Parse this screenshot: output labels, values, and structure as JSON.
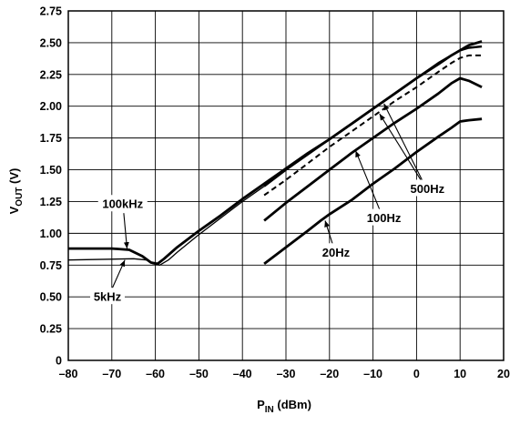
{
  "chart_data": {
    "type": "line",
    "title": "",
    "xlabel": "P",
    "xlabel_sub": "IN",
    "xlabel_unit": " (dBm)",
    "ylabel": "V",
    "ylabel_sub": "OUT",
    "ylabel_unit": " (V)",
    "xlim": [
      -80,
      20
    ],
    "ylim": [
      0,
      2.75
    ],
    "xticks": [
      -80,
      -70,
      -60,
      -50,
      -40,
      -30,
      -20,
      -10,
      0,
      10,
      20
    ],
    "yticks": [
      0,
      0.25,
      0.5,
      0.75,
      1.0,
      1.25,
      1.5,
      1.75,
      2.0,
      2.25,
      2.5,
      2.75
    ],
    "xtick_labels": [
      "–80",
      "–70",
      "–60",
      "–50",
      "–40",
      "–30",
      "–20",
      "–10",
      "0",
      "10",
      "20"
    ],
    "ytick_labels": [
      "0",
      "0.25",
      "0.50",
      "0.75",
      "1.00",
      "1.25",
      "1.50",
      "1.75",
      "2.00",
      "2.25",
      "2.50",
      "2.75"
    ],
    "grid": true,
    "series": [
      {
        "name": "100kHz",
        "style": "solid-thick",
        "x": [
          -80,
          -70,
          -66,
          -63,
          -61,
          -59.5,
          -58,
          -55,
          -50,
          -45,
          -40,
          -35,
          -30,
          -25,
          -20,
          -15,
          -10,
          -5,
          0,
          5,
          8,
          10,
          12,
          15
        ],
        "y": [
          0.88,
          0.88,
          0.87,
          0.82,
          0.77,
          0.76,
          0.8,
          0.89,
          1.02,
          1.14,
          1.27,
          1.39,
          1.51,
          1.63,
          1.74,
          1.86,
          1.98,
          2.1,
          2.22,
          2.33,
          2.4,
          2.44,
          2.48,
          2.51
        ]
      },
      {
        "name": "5kHz",
        "style": "solid-thin",
        "x": [
          -80,
          -65,
          -62,
          -60.5,
          -59,
          -57,
          -55,
          -50,
          -45,
          -40,
          -35
        ],
        "y": [
          0.79,
          0.8,
          0.79,
          0.76,
          0.75,
          0.79,
          0.85,
          0.99,
          1.12,
          1.25,
          1.37
        ]
      },
      {
        "name": "",
        "style": "solid-medium",
        "x": [
          -35,
          -30,
          -25,
          -20,
          -15,
          -10,
          -5,
          0,
          5,
          10,
          12,
          15
        ],
        "y": [
          1.37,
          1.5,
          1.62,
          1.74,
          1.86,
          1.98,
          2.1,
          2.22,
          2.34,
          2.44,
          2.46,
          2.47
        ]
      },
      {
        "name": "500Hz",
        "style": "dashed",
        "x": [
          -35,
          -30,
          -25,
          -20,
          -15,
          -10,
          -5,
          0,
          5,
          8,
          10,
          12,
          15
        ],
        "y": [
          1.3,
          1.42,
          1.55,
          1.68,
          1.8,
          1.92,
          2.04,
          2.15,
          2.27,
          2.34,
          2.38,
          2.4,
          2.4
        ]
      },
      {
        "name": "100Hz",
        "style": "solid-thick",
        "x": [
          -35,
          -30,
          -25,
          -20,
          -15,
          -10,
          -5,
          0,
          5,
          8,
          10,
          12,
          15
        ],
        "y": [
          1.1,
          1.24,
          1.37,
          1.5,
          1.63,
          1.75,
          1.87,
          1.98,
          2.1,
          2.18,
          2.22,
          2.2,
          2.15
        ]
      },
      {
        "name": "20Hz",
        "style": "solid-thick",
        "x": [
          -35,
          -30,
          -25,
          -22,
          -20,
          -15,
          -10,
          -5,
          0,
          5,
          8,
          10,
          12,
          15
        ],
        "y": [
          0.76,
          0.89,
          1.02,
          1.1,
          1.15,
          1.26,
          1.39,
          1.51,
          1.64,
          1.76,
          1.83,
          1.88,
          1.89,
          1.9
        ]
      }
    ],
    "annotations": [
      {
        "text": "100kHz",
        "x": -67.5,
        "y": 1.23,
        "point_x": -66.5,
        "point_y": 0.88
      },
      {
        "text": "5kHz",
        "x": -71,
        "y": 0.5,
        "point_x": -67,
        "point_y": 0.79
      },
      {
        "text": "500Hz",
        "x": 2.5,
        "y": 1.35,
        "point_x": -8.5,
        "point_y": 1.94,
        "point2_x": -7.5,
        "point2_y": 2.02
      },
      {
        "text": "100Hz",
        "x": -7.5,
        "y": 1.12,
        "point_x": -14,
        "point_y": 1.65
      },
      {
        "text": "20Hz",
        "x": -18.5,
        "y": 0.85,
        "point_x": -21,
        "point_y": 1.1
      }
    ]
  }
}
